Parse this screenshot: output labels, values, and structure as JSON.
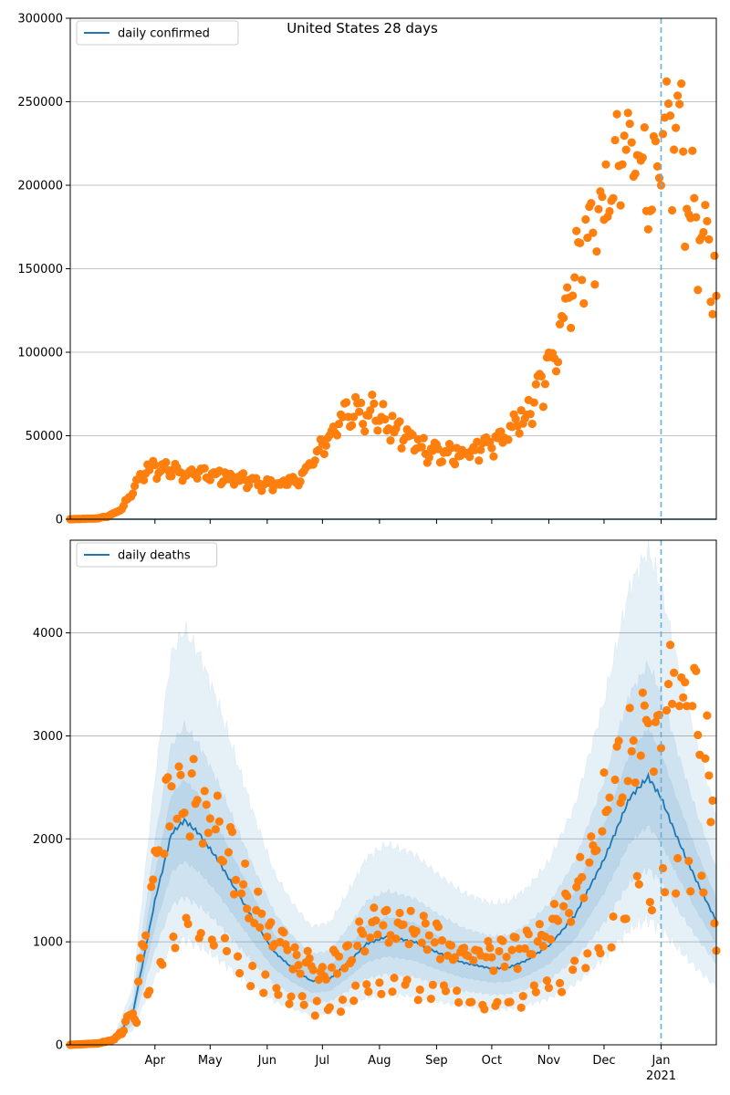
{
  "chart_data": [
    {
      "type": "scatter",
      "title": "United States 28 days",
      "xlabel": "",
      "ylabel": "",
      "ylim": [
        0,
        300000
      ],
      "yticks": [
        0,
        50000,
        100000,
        150000,
        200000,
        250000,
        300000
      ],
      "grid": "y",
      "legend": {
        "placement": "top-left",
        "entries": [
          "daily confirmed"
        ]
      },
      "colors": {
        "points": "#ff7f0e",
        "line": "#1f77b4",
        "marker": "#6baed6"
      },
      "date_marker": "2021-01-01",
      "series": [
        {
          "name": "daily confirmed",
          "anchors": [
            [
              "2020-02-15",
              0
            ],
            [
              "2020-03-01",
              500
            ],
            [
              "2020-03-07",
              2000
            ],
            [
              "2020-03-14",
              6000
            ],
            [
              "2020-03-20",
              18000
            ],
            [
              "2020-03-28",
              30000
            ],
            [
              "2020-04-05",
              31000
            ],
            [
              "2020-04-15",
              29000
            ],
            [
              "2020-05-01",
              27000
            ],
            [
              "2020-05-15",
              24000
            ],
            [
              "2020-06-01",
              21000
            ],
            [
              "2020-06-15",
              22000
            ],
            [
              "2020-06-22",
              28000
            ],
            [
              "2020-07-01",
              45000
            ],
            [
              "2020-07-10",
              58000
            ],
            [
              "2020-07-20",
              67000
            ],
            [
              "2020-07-28",
              66000
            ],
            [
              "2020-08-05",
              57000
            ],
            [
              "2020-08-15",
              50000
            ],
            [
              "2020-08-25",
              43000
            ],
            [
              "2020-09-10",
              38000
            ],
            [
              "2020-09-20",
              41000
            ],
            [
              "2020-10-01",
              44000
            ],
            [
              "2020-10-10",
              52000
            ],
            [
              "2020-10-20",
              62000
            ],
            [
              "2020-10-30",
              85000
            ],
            [
              "2020-11-07",
              115000
            ],
            [
              "2020-11-15",
              150000
            ],
            [
              "2020-11-25",
              175000
            ],
            [
              "2020-12-01",
              185000
            ],
            [
              "2020-12-10",
              215000
            ],
            [
              "2020-12-20",
              225000
            ],
            [
              "2020-12-28",
              195000
            ],
            [
              "2021-01-03",
              220000
            ],
            [
              "2021-01-10",
              240000
            ],
            [
              "2021-01-16",
              195000
            ],
            [
              "2021-01-25",
              160000
            ],
            [
              "2021-01-31",
              145000
            ]
          ]
        }
      ]
    },
    {
      "type": "line",
      "title": "",
      "xlabel": "",
      "ylabel": "",
      "ylim": [
        0,
        4900
      ],
      "yticks": [
        0,
        1000,
        2000,
        3000,
        4000
      ],
      "grid": "y",
      "legend": {
        "placement": "top-left",
        "entries": [
          "daily deaths"
        ]
      },
      "colors": {
        "points": "#ff7f0e",
        "line": "#1f77b4",
        "band": "#1f77b4",
        "marker": "#6baed6"
      },
      "date_marker": "2021-01-01",
      "series": [
        {
          "name": "daily deaths",
          "anchors": [
            [
              "2020-02-15",
              0
            ],
            [
              "2020-03-01",
              15
            ],
            [
              "2020-03-10",
              50
            ],
            [
              "2020-03-20",
              300
            ],
            [
              "2020-04-01",
              1400
            ],
            [
              "2020-04-10",
              2050
            ],
            [
              "2020-04-17",
              2180
            ],
            [
              "2020-04-25",
              2050
            ],
            [
              "2020-05-05",
              1800
            ],
            [
              "2020-05-15",
              1500
            ],
            [
              "2020-05-25",
              1200
            ],
            [
              "2020-06-05",
              900
            ],
            [
              "2020-06-15",
              740
            ],
            [
              "2020-06-25",
              620
            ],
            [
              "2020-07-05",
              640
            ],
            [
              "2020-07-15",
              800
            ],
            [
              "2020-07-25",
              980
            ],
            [
              "2020-08-05",
              1050
            ],
            [
              "2020-08-20",
              1000
            ],
            [
              "2020-09-01",
              900
            ],
            [
              "2020-09-15",
              800
            ],
            [
              "2020-10-01",
              740
            ],
            [
              "2020-10-10",
              750
            ],
            [
              "2020-10-20",
              820
            ],
            [
              "2020-11-01",
              960
            ],
            [
              "2020-11-15",
              1250
            ],
            [
              "2020-12-01",
              1800
            ],
            [
              "2020-12-15",
              2400
            ],
            [
              "2020-12-25",
              2600
            ],
            [
              "2021-01-01",
              2400
            ],
            [
              "2021-01-10",
              2000
            ],
            [
              "2021-01-20",
              1600
            ],
            [
              "2021-01-31",
              1200
            ]
          ]
        }
      ],
      "observed_anchors": [
        [
          "2020-02-15",
          0
        ],
        [
          "2020-03-01",
          15
        ],
        [
          "2020-03-10",
          50
        ],
        [
          "2020-03-20",
          300
        ],
        [
          "2020-04-01",
          1500
        ],
        [
          "2020-04-10",
          2100
        ],
        [
          "2020-04-20",
          2100
        ],
        [
          "2020-05-01",
          1900
        ],
        [
          "2020-05-15",
          1450
        ],
        [
          "2020-06-01",
          1000
        ],
        [
          "2020-06-15",
          750
        ],
        [
          "2020-07-01",
          620
        ],
        [
          "2020-07-15",
          800
        ],
        [
          "2020-08-01",
          1050
        ],
        [
          "2020-08-15",
          1000
        ],
        [
          "2020-09-01",
          880
        ],
        [
          "2020-09-15",
          790
        ],
        [
          "2020-10-01",
          750
        ],
        [
          "2020-10-15",
          770
        ],
        [
          "2020-11-01",
          950
        ],
        [
          "2020-11-15",
          1250
        ],
        [
          "2020-12-01",
          1950
        ],
        [
          "2020-12-15",
          2450
        ],
        [
          "2021-01-01",
          2800
        ],
        [
          "2021-01-10",
          3100
        ],
        [
          "2021-01-20",
          2700
        ],
        [
          "2021-01-31",
          2100
        ]
      ],
      "bands": [
        {
          "lower": 0.82,
          "upper": 1.18
        },
        {
          "lower": 0.66,
          "upper": 1.42
        },
        {
          "lower": 0.47,
          "upper": 1.85
        }
      ]
    }
  ],
  "x_axis": {
    "range": [
      "2020-02-15",
      "2021-01-31"
    ],
    "ticks": [
      {
        "date": "2020-04-01",
        "label": "Apr"
      },
      {
        "date": "2020-05-01",
        "label": "May"
      },
      {
        "date": "2020-06-01",
        "label": "Jun"
      },
      {
        "date": "2020-07-01",
        "label": "Jul"
      },
      {
        "date": "2020-08-01",
        "label": "Aug"
      },
      {
        "date": "2020-09-01",
        "label": "Sep"
      },
      {
        "date": "2020-10-01",
        "label": "Oct"
      },
      {
        "date": "2020-11-01",
        "label": "Nov"
      },
      {
        "date": "2020-12-01",
        "label": "Dec"
      },
      {
        "date": "2021-01-01",
        "label": "Jan"
      }
    ],
    "year_label": "2021"
  }
}
